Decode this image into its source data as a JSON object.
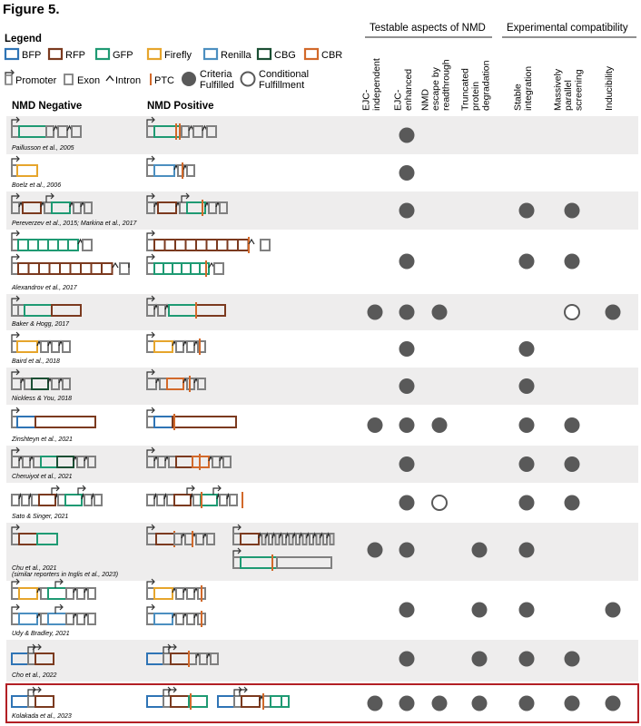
{
  "figure_label": "Figure 5.",
  "legend": {
    "title": "Legend",
    "colors": [
      {
        "key": "BFP",
        "label": "BFP",
        "hex": "#2f74b5"
      },
      {
        "key": "RFP",
        "label": "RFP",
        "hex": "#7b3a1f"
      },
      {
        "key": "GFP",
        "label": "GFP",
        "hex": "#1f9a73"
      },
      {
        "key": "Firefly",
        "label": "Firefly",
        "hex": "#e6a52c"
      },
      {
        "key": "Renilla",
        "label": "Renilla",
        "hex": "#4c8fc0"
      },
      {
        "key": "CBG",
        "label": "CBG",
        "hex": "#1b4f34"
      },
      {
        "key": "CBR",
        "label": "CBR",
        "hex": "#d2692a"
      }
    ],
    "symbols": {
      "promoter": "Promoter",
      "exon": "Exon",
      "intron": "Intron",
      "ptc": "PTC",
      "criteria": "Criteria Fulfilled",
      "conditional": "Conditional Fulfillment"
    }
  },
  "palette": {
    "exon": "#808080",
    "ptc": "#d2692a",
    "dot": "#595959",
    "shade": "#eeeded",
    "highlight": "#b21f24"
  },
  "section_headers": {
    "neg": "NMD Negative",
    "pos": "NMD Positive",
    "testable": "Testable aspects of NMD",
    "compat": "Experimental compatibility"
  },
  "columns": [
    {
      "id": "ejc_ind",
      "lines": [
        "EJC-",
        "independent"
      ]
    },
    {
      "id": "ejc_enh",
      "lines": [
        "EJC-",
        "enhanced"
      ]
    },
    {
      "id": "readthrough",
      "lines": [
        "NMD",
        "escape by",
        "readthrough"
      ]
    },
    {
      "id": "truncated",
      "lines": [
        "Truncated",
        "protein",
        "degradation"
      ]
    },
    {
      "id": "stable",
      "lines": [
        "Stable",
        "integration"
      ]
    },
    {
      "id": "mps",
      "lines": [
        "Massively",
        "parallel",
        "screening"
      ]
    },
    {
      "id": "induc",
      "lines": [
        "Inducibility"
      ]
    }
  ],
  "studies": [
    {
      "citation": "Paillusson et al., 2005",
      "marks": [
        0,
        1,
        0,
        0,
        0,
        0,
        0
      ]
    },
    {
      "citation": "Boelz et al., 2006",
      "marks": [
        0,
        1,
        0,
        0,
        0,
        0,
        0
      ]
    },
    {
      "citation": "Pereverzev et al., 2015; Markina et al., 2017",
      "marks": [
        0,
        1,
        0,
        0,
        1,
        1,
        0
      ]
    },
    {
      "citation": "Alexandrov et al., 2017",
      "marks": [
        0,
        1,
        0,
        0,
        1,
        1,
        0
      ]
    },
    {
      "citation": "Baker & Hogg, 2017",
      "marks": [
        1,
        1,
        1,
        0,
        0,
        2,
        1
      ]
    },
    {
      "citation": "Baird et al., 2018",
      "marks": [
        0,
        1,
        0,
        0,
        1,
        0,
        0
      ]
    },
    {
      "citation": "Nickless & You, 2018",
      "marks": [
        0,
        1,
        0,
        0,
        1,
        0,
        0
      ]
    },
    {
      "citation": "Zinshteyn et al., 2021",
      "marks": [
        1,
        1,
        1,
        0,
        1,
        1,
        0
      ]
    },
    {
      "citation": "Cheruiyot et al., 2021",
      "marks": [
        0,
        1,
        0,
        0,
        1,
        1,
        0
      ]
    },
    {
      "citation": "Sato & Singer, 2021",
      "marks": [
        0,
        1,
        2,
        0,
        1,
        1,
        0
      ]
    },
    {
      "citation": "Chu et al., 2021",
      "citation2": "(similar reporters in Inglis et al., 2023)",
      "marks": [
        1,
        1,
        0,
        1,
        1,
        0,
        0
      ]
    },
    {
      "citation": "Udy & Bradley, 2021",
      "marks": [
        0,
        1,
        0,
        1,
        1,
        0,
        1
      ]
    },
    {
      "citation": "Cho et al., 2022",
      "marks": [
        0,
        1,
        0,
        1,
        1,
        1,
        0
      ]
    },
    {
      "citation": "Kolakada et al., 2023",
      "marks": [
        1,
        1,
        1,
        1,
        1,
        1,
        1
      ]
    }
  ]
}
